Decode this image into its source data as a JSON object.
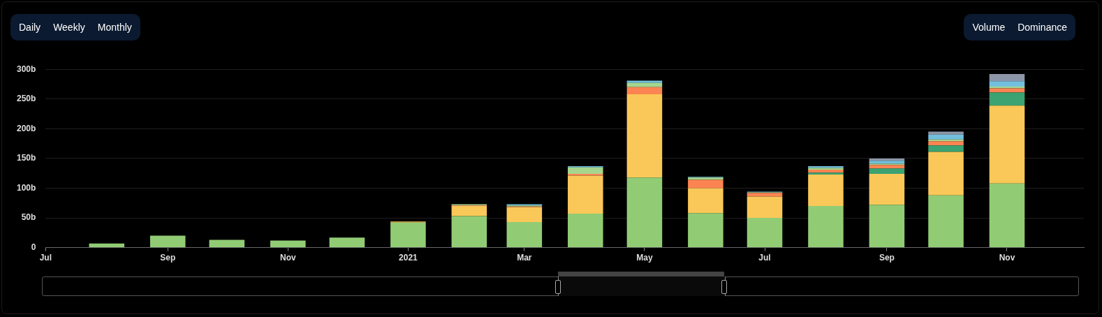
{
  "chart_data": {
    "type": "bar",
    "stacked": true,
    "grid": "y",
    "legend": false,
    "annotations": [
      "Daily",
      "Weekly",
      "Monthly",
      "Volume",
      "Dominance"
    ],
    "x": [
      "2020-08",
      "2020-09",
      "2020-10",
      "2020-11",
      "2020-12",
      "2021-01",
      "2021-02",
      "2021-03",
      "2021-04",
      "2021-05",
      "2021-06",
      "2021-07",
      "2021-08",
      "2021-09",
      "2021-10",
      "2021-11"
    ],
    "xlim": [
      "2020-07",
      "2021-12-10"
    ],
    "xticks": [
      {
        "value": "2020-07",
        "label": "Jul"
      },
      {
        "value": "2020-09",
        "label": "Sep"
      },
      {
        "value": "2020-11",
        "label": "Nov"
      },
      {
        "value": "2021-01",
        "label": "2021"
      },
      {
        "value": "2021-03",
        "label": "Mar"
      },
      {
        "value": "2021-05",
        "label": "May"
      },
      {
        "value": "2021-07",
        "label": "Jul"
      },
      {
        "value": "2021-09",
        "label": "Sep"
      },
      {
        "value": "2021-11",
        "label": "Nov"
      }
    ],
    "ylim": [
      0,
      300
    ],
    "yticks": [
      0,
      {
        "value": 50,
        "label": "50b"
      },
      {
        "value": 100,
        "label": "100b"
      },
      {
        "value": 150,
        "label": "150b"
      },
      {
        "value": 200,
        "label": "200b"
      },
      {
        "value": 250,
        "label": "250b"
      },
      {
        "value": 300,
        "label": "300b"
      }
    ],
    "series": [
      {
        "color": "#91cc75",
        "values": [
          7,
          20,
          13,
          12,
          17,
          42,
          53,
          43,
          57,
          118,
          58,
          50,
          70,
          72,
          88,
          108
        ]
      },
      {
        "color": "#fac858",
        "values": [
          0,
          0,
          0,
          0,
          0,
          2,
          17,
          25,
          64,
          140,
          42,
          36,
          53,
          52,
          73,
          131
        ]
      },
      {
        "color": "#3ba272",
        "values": [
          0,
          0,
          0,
          0,
          0,
          0,
          0,
          0,
          0,
          0,
          0,
          0,
          3,
          9,
          11,
          22
        ]
      },
      {
        "color": "#fc8452",
        "values": [
          0,
          0,
          0,
          0,
          0,
          0,
          1,
          1,
          3,
          12,
          14,
          6,
          5,
          6,
          7,
          7
        ]
      },
      {
        "color": "#a6d68e",
        "values": [
          0,
          0,
          0,
          0,
          0,
          0,
          2,
          2,
          11,
          7,
          4,
          1,
          3,
          2,
          3,
          3
        ]
      },
      {
        "color": "#73c0de",
        "values": [
          0,
          0,
          0,
          0,
          0,
          0,
          0,
          2,
          2,
          4,
          1,
          1,
          3,
          5,
          8,
          9
        ]
      },
      {
        "color": "#8c96a8",
        "values": [
          0,
          0,
          0,
          0,
          0,
          0,
          0,
          0,
          0,
          0,
          0,
          0,
          0,
          4,
          5,
          12
        ]
      }
    ]
  }
}
